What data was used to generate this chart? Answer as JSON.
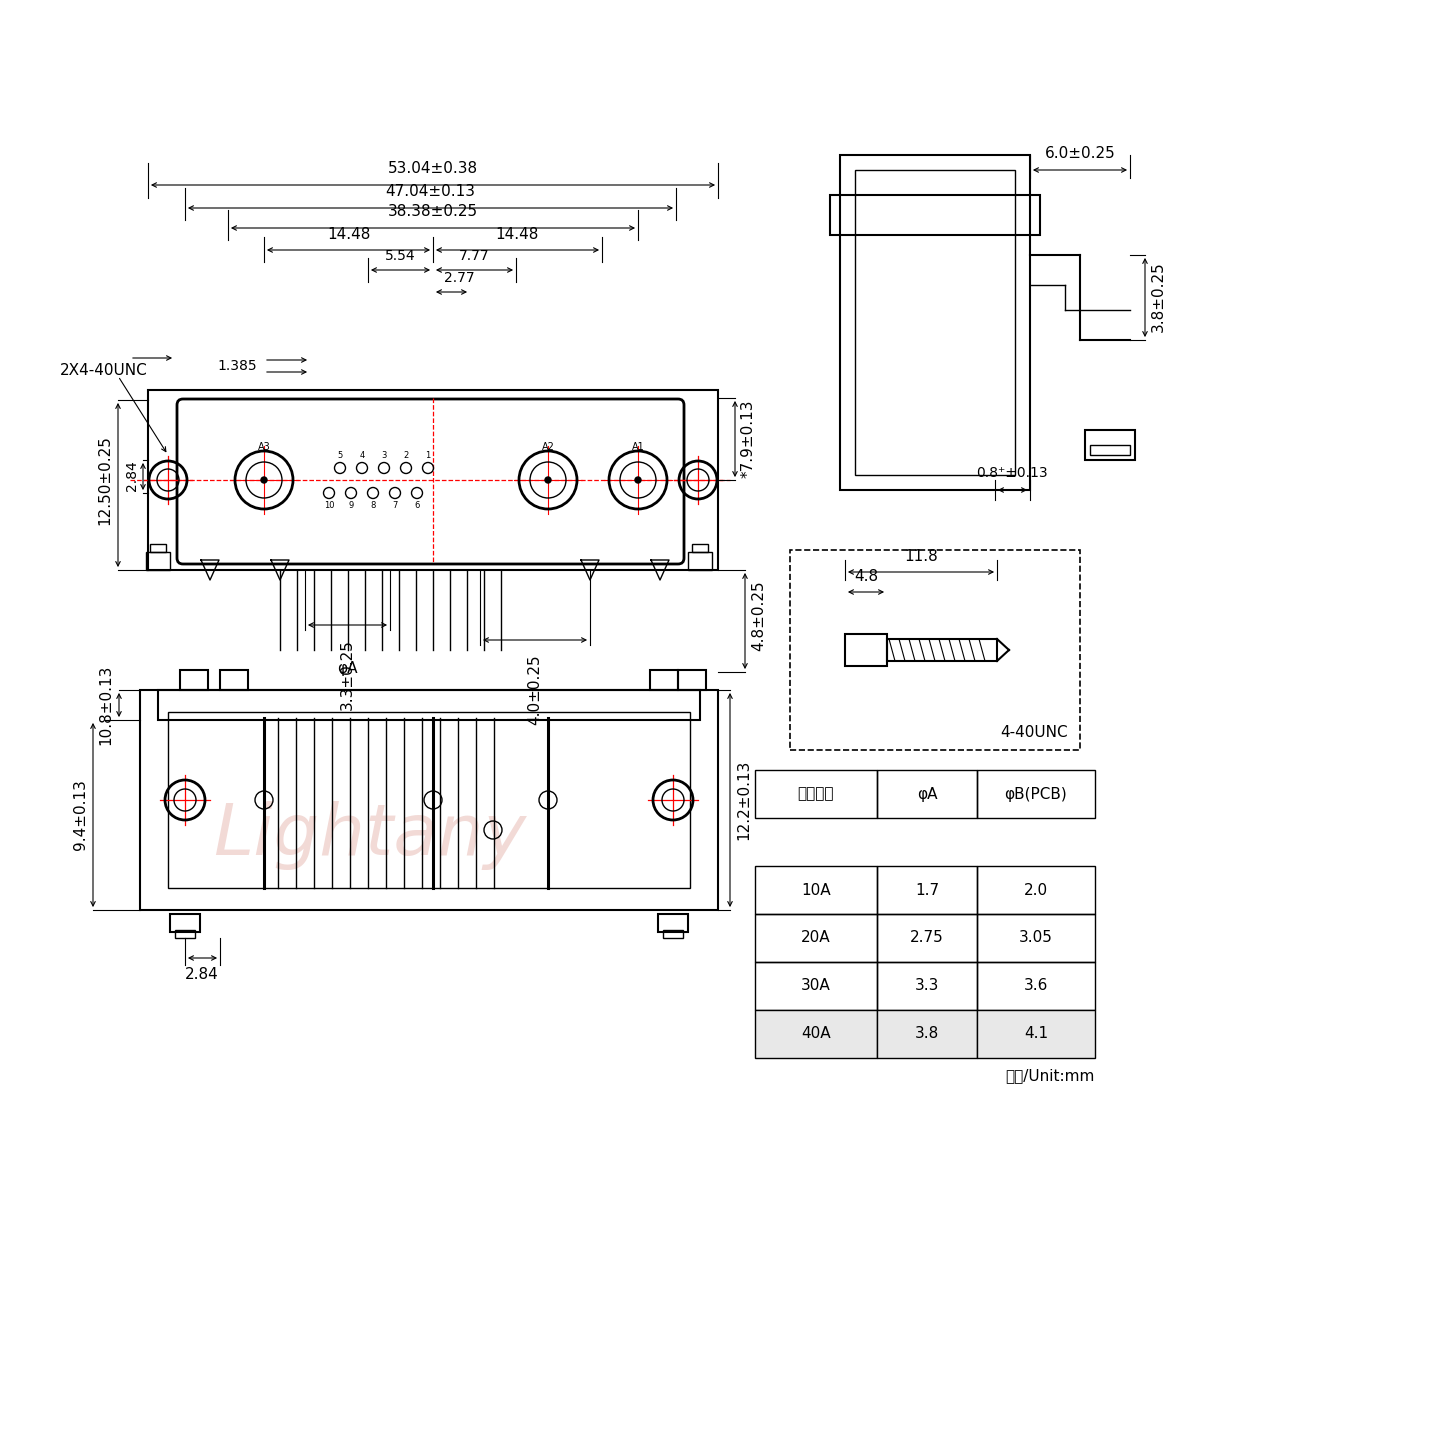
{
  "bg_color": "#ffffff",
  "line_color": "#000000",
  "red_color": "#ff0000",
  "watermark_color": "#d4857a",
  "watermark_text": "Lightany",
  "watermark_alpha": 0.3,
  "table_headers": [
    "额定电流",
    "φA",
    "φB(PCB)"
  ],
  "table_rows": [
    [
      "10A",
      "1.7",
      "2.0"
    ],
    [
      "20A",
      "2.75",
      "3.05"
    ],
    [
      "30A",
      "3.3",
      "3.6"
    ],
    [
      "40A",
      "3.8",
      "4.1"
    ]
  ],
  "unit_text": "单位/Unit:mm",
  "dim_53": "53.04±0.38",
  "dim_47": "47.04±0.13",
  "dim_38": "38.38±0.25",
  "dim_14_left": "14.48",
  "dim_14_right": "14.48",
  "dim_5_54": "5.54",
  "dim_7_77": "7.77",
  "dim_2_77": "2.77",
  "dim_1_385": "1.385",
  "dim_12_50": "12.50±0.25",
  "dim_2_84_top": "2.84",
  "dim_7_9": "*7.9±0.13",
  "dim_3_3": "3.3±0.25",
  "dim_4_0": "4.0±0.25",
  "dim_4_8v": "4.8±0.25",
  "dim_phi_a": "φA",
  "dim_6_0": "6.0±0.25",
  "dim_3_8_side": "3.8±0.25",
  "dim_0_8": "0.8⁺±0.13",
  "dim_11_8": "11.8",
  "dim_4_8_screw": "4.8",
  "dim_4_40unc": "4-40UNC",
  "dim_2x4_40unc": "2X4-40UNC",
  "dim_10_8": "10.8±0.13",
  "dim_9_4": "9.4±0.13",
  "dim_12_2": "12.2±0.13",
  "dim_2_84_bot": "2.84"
}
